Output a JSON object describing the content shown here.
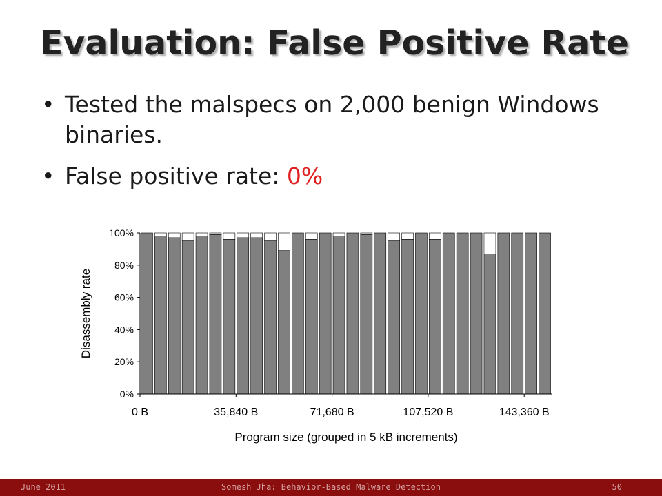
{
  "slide": {
    "title": "Evaluation: False Positive Rate",
    "bullets": [
      {
        "text": "Tested the malspecs on 2,000 benign Windows binaries.",
        "highlight": ""
      },
      {
        "text": "False positive rate: ",
        "highlight": "0%"
      }
    ],
    "highlight_color": "#e02020"
  },
  "footer": {
    "date": "June 2011",
    "center": "Somesh Jha: Behavior-Based Malware Detection",
    "page": "50",
    "bar_color": "#8b0e0e"
  },
  "chart_data": {
    "type": "bar",
    "stacked_to_100": true,
    "ylabel": "Disassembly rate",
    "xlabel": "Program size (grouped in 5 kB increments)",
    "ylim": [
      0,
      100
    ],
    "y_ticks": [
      "0%",
      "20%",
      "40%",
      "60%",
      "80%",
      "100%"
    ],
    "x_ticks": [
      {
        "label": "0 B",
        "index": 0
      },
      {
        "label": "35,840 B",
        "index": 7
      },
      {
        "label": "71,680 B",
        "index": 14
      },
      {
        "label": "107,520 B",
        "index": 21
      },
      {
        "label": "143,360 B",
        "index": 28
      }
    ],
    "bar_color": "#808080",
    "remainder_color": "#ffffff",
    "values": [
      100,
      98,
      97,
      95,
      98,
      99,
      96,
      97,
      97,
      95,
      89,
      100,
      96,
      100,
      98,
      100,
      99,
      100,
      95,
      96,
      100,
      96,
      100,
      100,
      100,
      87,
      100,
      100,
      100,
      100
    ]
  }
}
